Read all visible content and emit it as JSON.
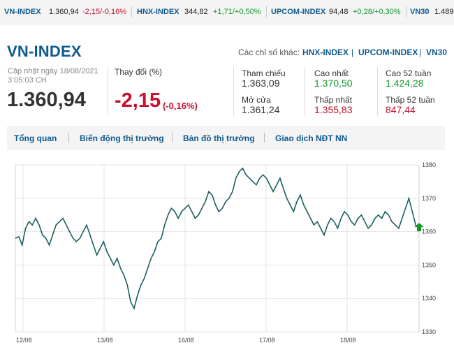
{
  "ticker": [
    {
      "name": "VN-INDEX",
      "value": "1.360,94",
      "change": "-2,15/-0,16%",
      "dir": "neg"
    },
    {
      "name": "HNX-INDEX",
      "value": "344,82",
      "change": "+1,71/+0,50%",
      "dir": "pos"
    },
    {
      "name": "UPCOM-INDEX",
      "value": "94,48",
      "change": "+0,28/+0,30%",
      "dir": "pos"
    },
    {
      "name": "VN30",
      "value": "1.489",
      "change": "",
      "dir": ""
    }
  ],
  "header": {
    "title": "VN-INDEX",
    "other_label": "Các chỉ số khác:",
    "other_links": [
      "HNX-INDEX",
      "UPCOM-INDEX",
      "VN30"
    ]
  },
  "summary": {
    "updated_line1": "Cập nhật ngày 18/08/2021",
    "updated_line2": "3:05:03 CH",
    "value": "1.360,94",
    "change_label": "Thay đổi (%)",
    "change": "-2,15",
    "change_pct": "(-0,16%)"
  },
  "stats": {
    "ref_label": "Tham chiếu",
    "ref": "1.363,09",
    "open_label": "Mở cửa",
    "open": "1.361,24",
    "high_label": "Cao nhất",
    "high": "1.370,50",
    "low_label": "Thấp nhất",
    "low": "1.355,83",
    "high52_label": "Cao 52 tuần",
    "high52": "1.424,28",
    "low52_label": "Thấp 52 tuần",
    "low52": "847,44"
  },
  "tabs": [
    "Tổng quan",
    "Biến động thị trường",
    "Bản đồ thị trường",
    "Giao dịch NĐT NN"
  ],
  "colors": {
    "brand": "#0d5a8f",
    "up": "#139a2b",
    "down": "#c8102e",
    "line": "#1c5f60"
  },
  "chart_data": {
    "type": "line",
    "x_labels": [
      "12/08",
      "13/08",
      "16/08",
      "17/08",
      "18/08"
    ],
    "y_ticks": [
      1330,
      1340,
      1350,
      1360,
      1370,
      1380
    ],
    "ylim": [
      1330,
      1380
    ],
    "grid": true,
    "series": [
      {
        "values": [
          1358,
          1358.5,
          1356,
          1361,
          1363,
          1362,
          1364,
          1362,
          1359,
          1358,
          1356,
          1359,
          1362,
          1363,
          1364,
          1362,
          1360,
          1358,
          1357,
          1358,
          1360,
          1362,
          1359,
          1356,
          1353,
          1355,
          1357,
          1354,
          1352,
          1350,
          1352,
          1349,
          1347,
          1344,
          1339,
          1337,
          1341,
          1344,
          1346,
          1349,
          1352,
          1354,
          1357,
          1358,
          1362,
          1365,
          1367,
          1366,
          1364,
          1366,
          1367,
          1368,
          1366,
          1364,
          1365,
          1367,
          1369,
          1372,
          1371,
          1368,
          1366,
          1367,
          1369,
          1370,
          1372,
          1376,
          1378,
          1379,
          1377,
          1376,
          1375,
          1374,
          1376,
          1377,
          1376,
          1374,
          1372,
          1374,
          1376,
          1373,
          1370,
          1368,
          1366,
          1369,
          1371,
          1368,
          1366,
          1364,
          1362,
          1363,
          1361,
          1359,
          1362,
          1364,
          1363,
          1361,
          1364,
          1366,
          1365,
          1363,
          1362,
          1364,
          1365,
          1363,
          1361,
          1362,
          1364,
          1365,
          1364,
          1366,
          1365,
          1363,
          1362,
          1361,
          1364,
          1367,
          1370,
          1366,
          1362,
          1360.94
        ]
      }
    ],
    "last_value": 1360.94,
    "last_marker_color": "#139a2b"
  }
}
